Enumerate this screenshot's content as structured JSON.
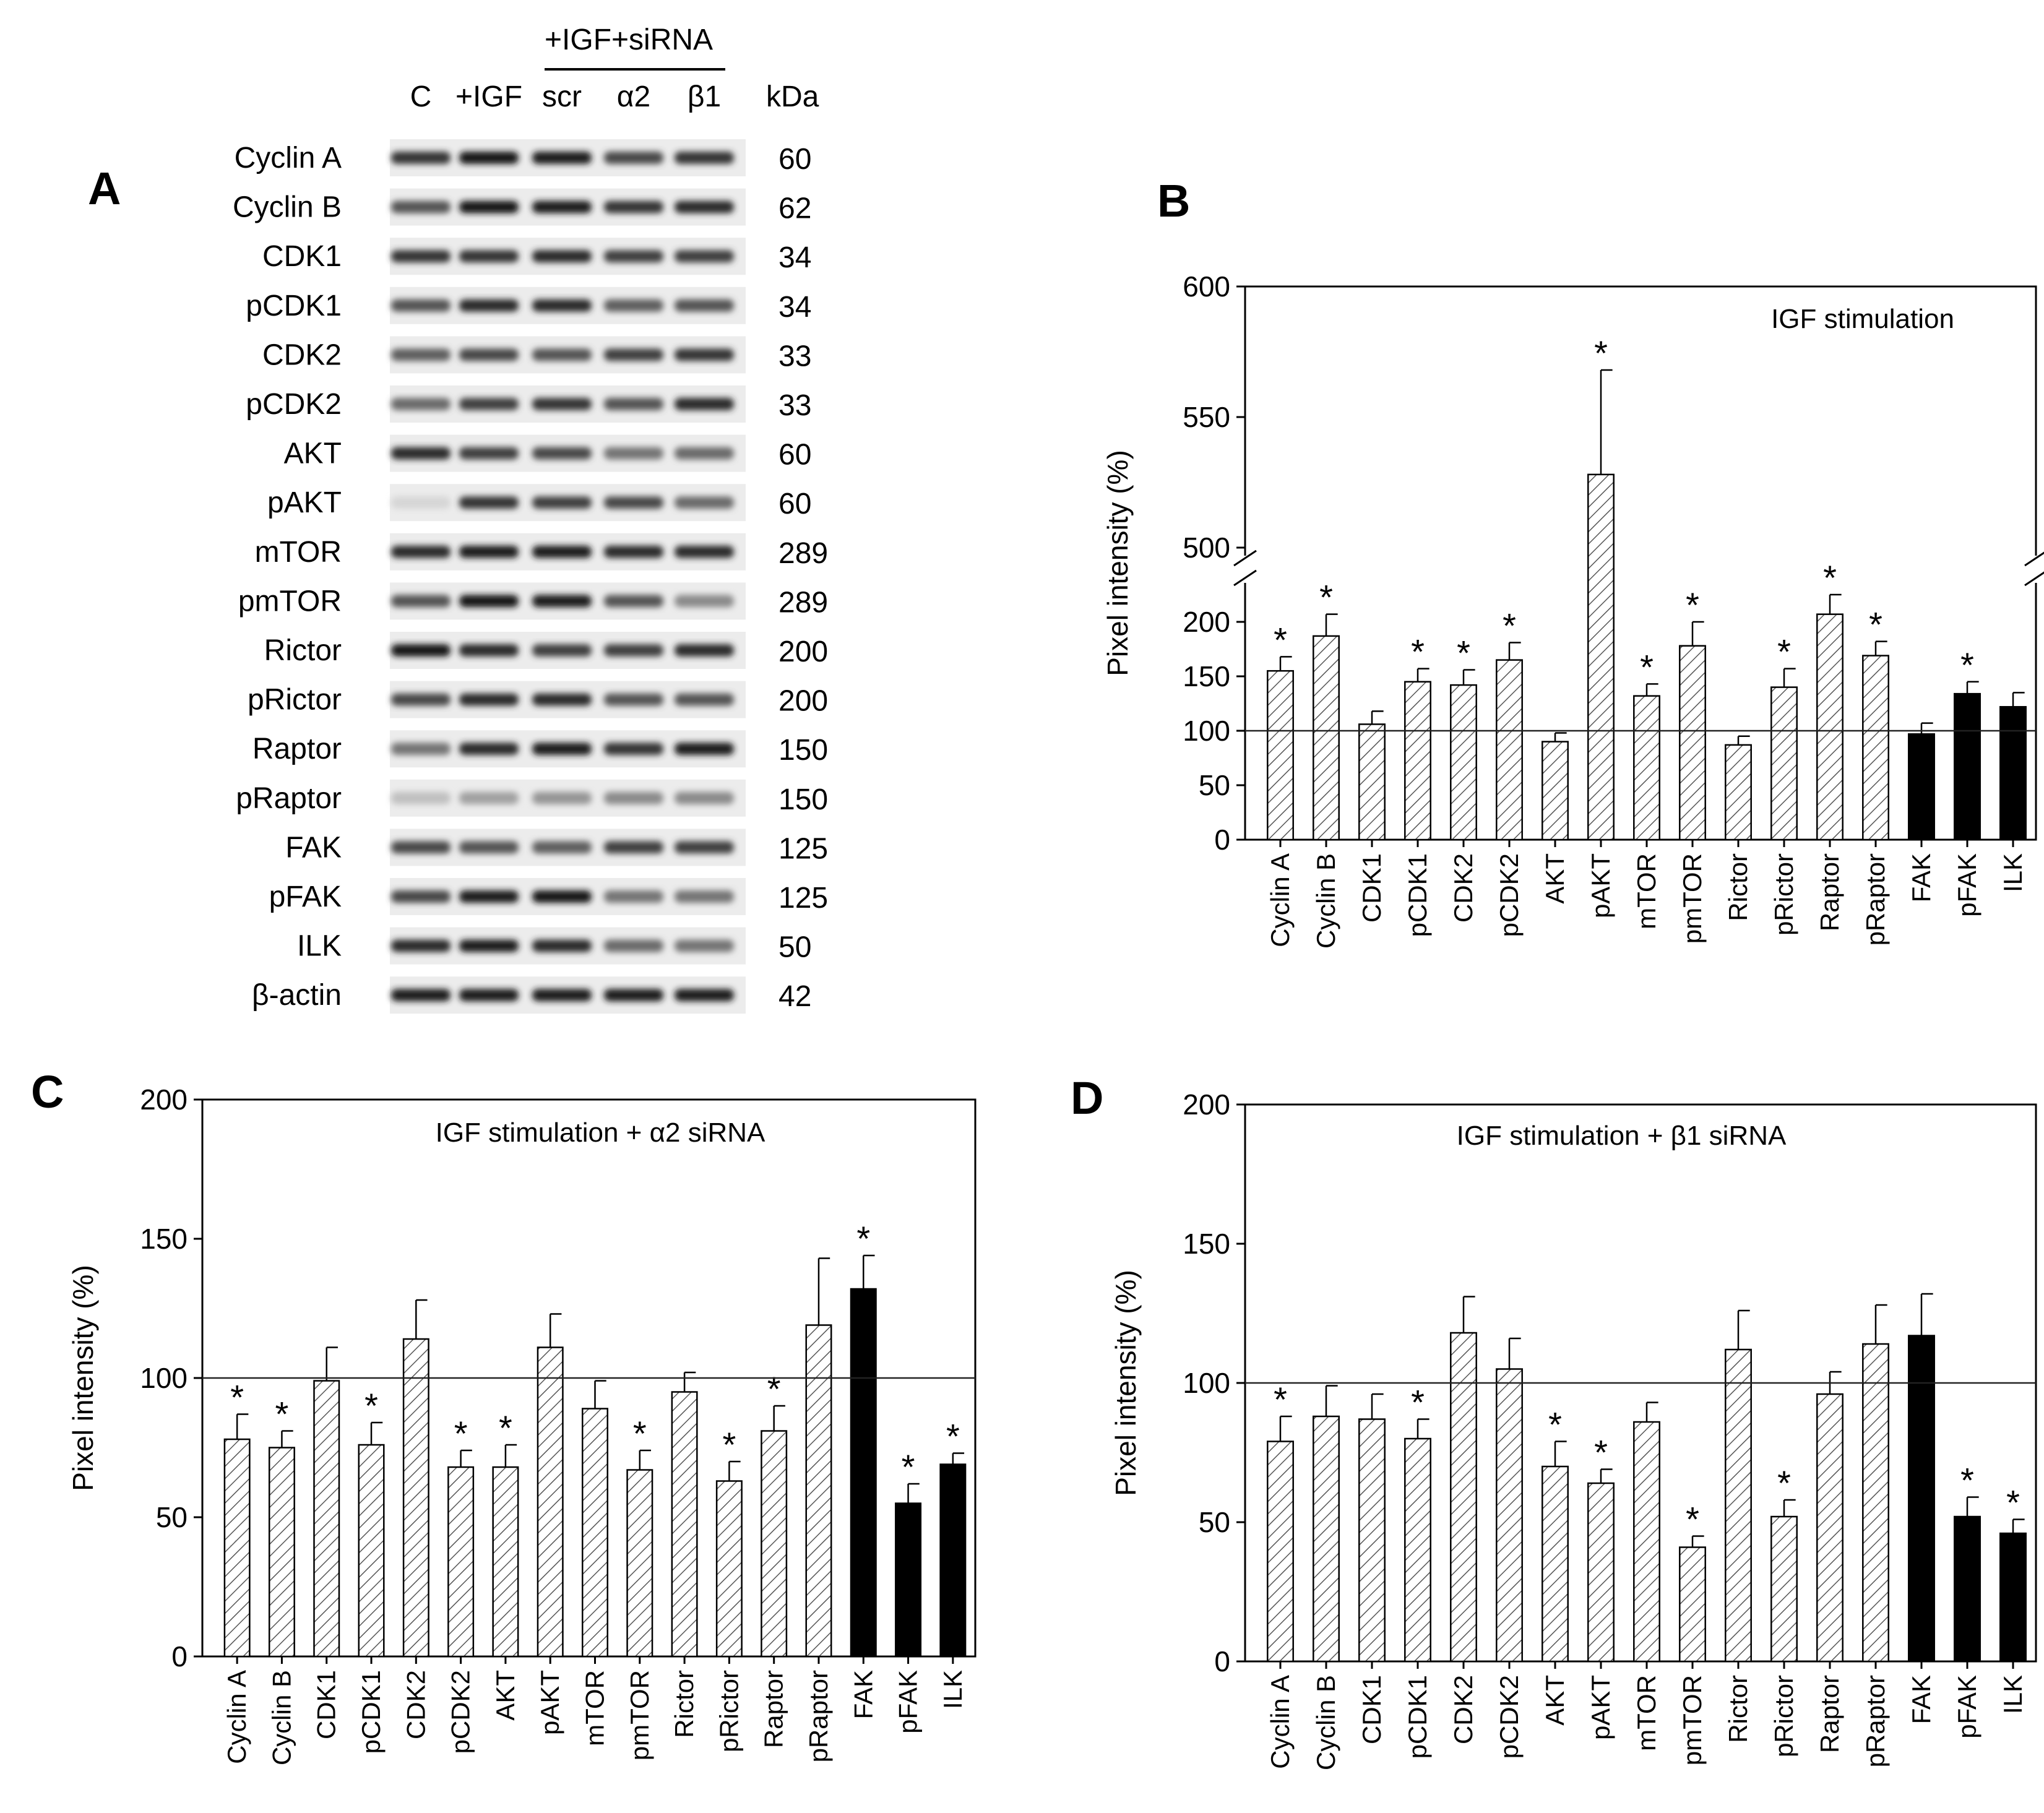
{
  "panels": {
    "A": "A",
    "B": "B",
    "C": "C",
    "D": "D"
  },
  "blot": {
    "group_label": "+IGF+siRNA",
    "lanes": [
      "C",
      "+IGF",
      "scr",
      "α2",
      "β1"
    ],
    "kda_header": "kDa",
    "rows": [
      {
        "label": "Cyclin A",
        "kda": "60",
        "intensity": [
          0.85,
          1.0,
          0.95,
          0.75,
          0.85
        ]
      },
      {
        "label": "Cyclin B",
        "kda": "62",
        "intensity": [
          0.7,
          1.0,
          0.95,
          0.85,
          0.9
        ]
      },
      {
        "label": "CDK1",
        "kda": "34",
        "intensity": [
          0.85,
          0.85,
          0.9,
          0.8,
          0.8
        ]
      },
      {
        "label": "pCDK1",
        "kda": "34",
        "intensity": [
          0.7,
          0.9,
          0.9,
          0.65,
          0.7
        ]
      },
      {
        "label": "CDK2",
        "kda": "33",
        "intensity": [
          0.65,
          0.75,
          0.7,
          0.8,
          0.85
        ]
      },
      {
        "label": "pCDK2",
        "kda": "33",
        "intensity": [
          0.6,
          0.8,
          0.85,
          0.7,
          0.9
        ]
      },
      {
        "label": "AKT",
        "kda": "60",
        "intensity": [
          0.9,
          0.8,
          0.75,
          0.55,
          0.6
        ]
      },
      {
        "label": "pAKT",
        "kda": "60",
        "intensity": [
          0.1,
          0.85,
          0.8,
          0.75,
          0.6
        ]
      },
      {
        "label": "mTOR",
        "kda": "289",
        "intensity": [
          0.9,
          0.95,
          0.95,
          0.9,
          0.9
        ]
      },
      {
        "label": "pmTOR",
        "kda": "289",
        "intensity": [
          0.7,
          1.0,
          0.95,
          0.7,
          0.45
        ]
      },
      {
        "label": "Rictor",
        "kda": "200",
        "intensity": [
          1.0,
          0.9,
          0.8,
          0.8,
          0.9
        ]
      },
      {
        "label": "pRictor",
        "kda": "200",
        "intensity": [
          0.75,
          0.9,
          0.9,
          0.7,
          0.7
        ]
      },
      {
        "label": "Raptor",
        "kda": "150",
        "intensity": [
          0.55,
          0.9,
          0.95,
          0.85,
          0.95
        ]
      },
      {
        "label": "pRaptor",
        "kda": "150",
        "intensity": [
          0.2,
          0.35,
          0.4,
          0.45,
          0.45
        ]
      },
      {
        "label": "FAK",
        "kda": "125",
        "intensity": [
          0.75,
          0.7,
          0.65,
          0.8,
          0.8
        ]
      },
      {
        "label": "pFAK",
        "kda": "125",
        "intensity": [
          0.75,
          0.95,
          1.0,
          0.55,
          0.55
        ]
      },
      {
        "label": "ILK",
        "kda": "50",
        "intensity": [
          0.9,
          0.95,
          0.9,
          0.6,
          0.55
        ]
      },
      {
        "label": "β-actin",
        "kda": "42",
        "intensity": [
          0.95,
          0.95,
          0.95,
          0.95,
          0.95
        ]
      }
    ]
  },
  "chart_data": [
    {
      "panel": "B",
      "type": "bar",
      "title": "IGF stimulation",
      "ylabel": "Pixel intensity (%)",
      "xlabel": "",
      "ylim": [
        0,
        600
      ],
      "axis_break": {
        "lower": [
          0,
          250
        ],
        "upper": [
          500,
          600
        ]
      },
      "yticks": [
        0,
        50,
        100,
        150,
        200,
        500,
        550,
        600
      ],
      "reference_line": 100,
      "categories": [
        "Cyclin A",
        "Cyclin B",
        "CDK1",
        "pCDK1",
        "CDK2",
        "pCDK2",
        "AKT",
        "pAKT",
        "mTOR",
        "pmTOR",
        "Rictor",
        "pRictor",
        "Raptor",
        "pRaptor",
        "FAK",
        "pFAK",
        "ILK"
      ],
      "values": [
        155,
        187,
        106,
        145,
        142,
        165,
        90,
        528,
        132,
        178,
        87,
        140,
        207,
        169,
        97,
        134,
        122
      ],
      "errors": [
        13,
        20,
        12,
        12,
        14,
        16,
        8,
        40,
        11,
        22,
        8,
        17,
        18,
        13,
        10,
        11,
        13
      ],
      "significant": [
        true,
        true,
        false,
        true,
        true,
        true,
        false,
        true,
        true,
        true,
        false,
        true,
        true,
        true,
        false,
        true,
        false
      ],
      "fill": [
        "hatch",
        "hatch",
        "hatch",
        "hatch",
        "hatch",
        "hatch",
        "hatch",
        "hatch",
        "hatch",
        "hatch",
        "hatch",
        "hatch",
        "hatch",
        "hatch",
        "solid",
        "solid",
        "solid"
      ],
      "star_symbol": "*"
    },
    {
      "panel": "C",
      "type": "bar",
      "title": "IGF stimulation + α2 siRNA",
      "ylabel": "Pixel intensity (%)",
      "xlabel": "",
      "ylim": [
        0,
        200
      ],
      "yticks": [
        0,
        50,
        100,
        150,
        200
      ],
      "reference_line": 100,
      "categories": [
        "Cyclin A",
        "Cyclin B",
        "CDK1",
        "pCDK1",
        "CDK2",
        "pCDK2",
        "AKT",
        "pAKT",
        "mTOR",
        "pmTOR",
        "Rictor",
        "pRictor",
        "Raptor",
        "pRaptor",
        "FAK",
        "pFAK",
        "ILK"
      ],
      "values": [
        78,
        75,
        99,
        76,
        114,
        68,
        68,
        111,
        89,
        67,
        95,
        63,
        81,
        119,
        132,
        55,
        69
      ],
      "errors": [
        9,
        6,
        12,
        8,
        14,
        6,
        8,
        12,
        10,
        7,
        7,
        7,
        9,
        24,
        12,
        7,
        4
      ],
      "significant": [
        true,
        true,
        false,
        true,
        false,
        true,
        true,
        false,
        false,
        true,
        false,
        true,
        true,
        false,
        true,
        true,
        true
      ],
      "fill": [
        "hatch",
        "hatch",
        "hatch",
        "hatch",
        "hatch",
        "hatch",
        "hatch",
        "hatch",
        "hatch",
        "hatch",
        "hatch",
        "hatch",
        "hatch",
        "hatch",
        "solid",
        "solid",
        "solid"
      ],
      "star_symbol": "*"
    },
    {
      "panel": "D",
      "type": "bar",
      "title": "IGF stimulation + β1 siRNA",
      "ylabel": "Pixel intensity (%)",
      "xlabel": "",
      "ylim": [
        0,
        200
      ],
      "yticks": [
        0,
        50,
        100,
        150,
        200
      ],
      "reference_line": 100,
      "categories": [
        "Cyclin A",
        "Cyclin B",
        "CDK1",
        "pCDK1",
        "CDK2",
        "pCDK2",
        "AKT",
        "pAKT",
        "mTOR",
        "pmTOR",
        "Rictor",
        "pRictor",
        "Raptor",
        "pRaptor",
        "FAK",
        "pFAK",
        "ILK"
      ],
      "values": [
        79,
        88,
        87,
        80,
        118,
        105,
        70,
        64,
        86,
        41,
        112,
        52,
        96,
        114,
        117,
        52,
        46
      ],
      "errors": [
        9,
        11,
        9,
        7,
        13,
        11,
        9,
        5,
        7,
        4,
        14,
        6,
        8,
        14,
        15,
        7,
        5
      ],
      "significant": [
        true,
        false,
        false,
        true,
        false,
        false,
        true,
        true,
        false,
        true,
        false,
        true,
        false,
        false,
        false,
        true,
        true
      ],
      "fill": [
        "hatch",
        "hatch",
        "hatch",
        "hatch",
        "hatch",
        "hatch",
        "hatch",
        "hatch",
        "hatch",
        "hatch",
        "hatch",
        "hatch",
        "hatch",
        "hatch",
        "solid",
        "solid",
        "solid"
      ],
      "star_symbol": "*"
    }
  ]
}
